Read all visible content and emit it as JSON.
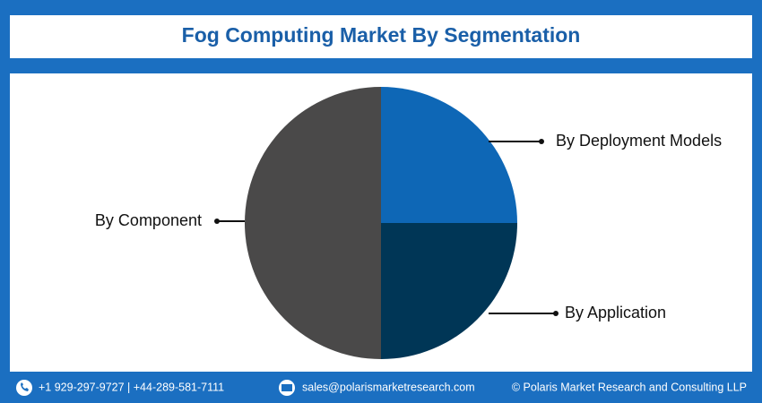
{
  "chart_data": {
    "type": "pie",
    "title": "Fog Computing Market By Segmentation",
    "categories": [
      "By Deployment Models",
      "By Application",
      "By Component"
    ],
    "values": [
      25,
      25,
      50
    ],
    "colors": [
      "#0e67b6",
      "#003656",
      "#4a4949"
    ]
  },
  "footer": {
    "phone": "+1 929-297-9727 | +44-289-581-7111",
    "email": "sales@polarismarketresearch.com",
    "copyright": "© Polaris Market Research and Consulting LLP"
  }
}
